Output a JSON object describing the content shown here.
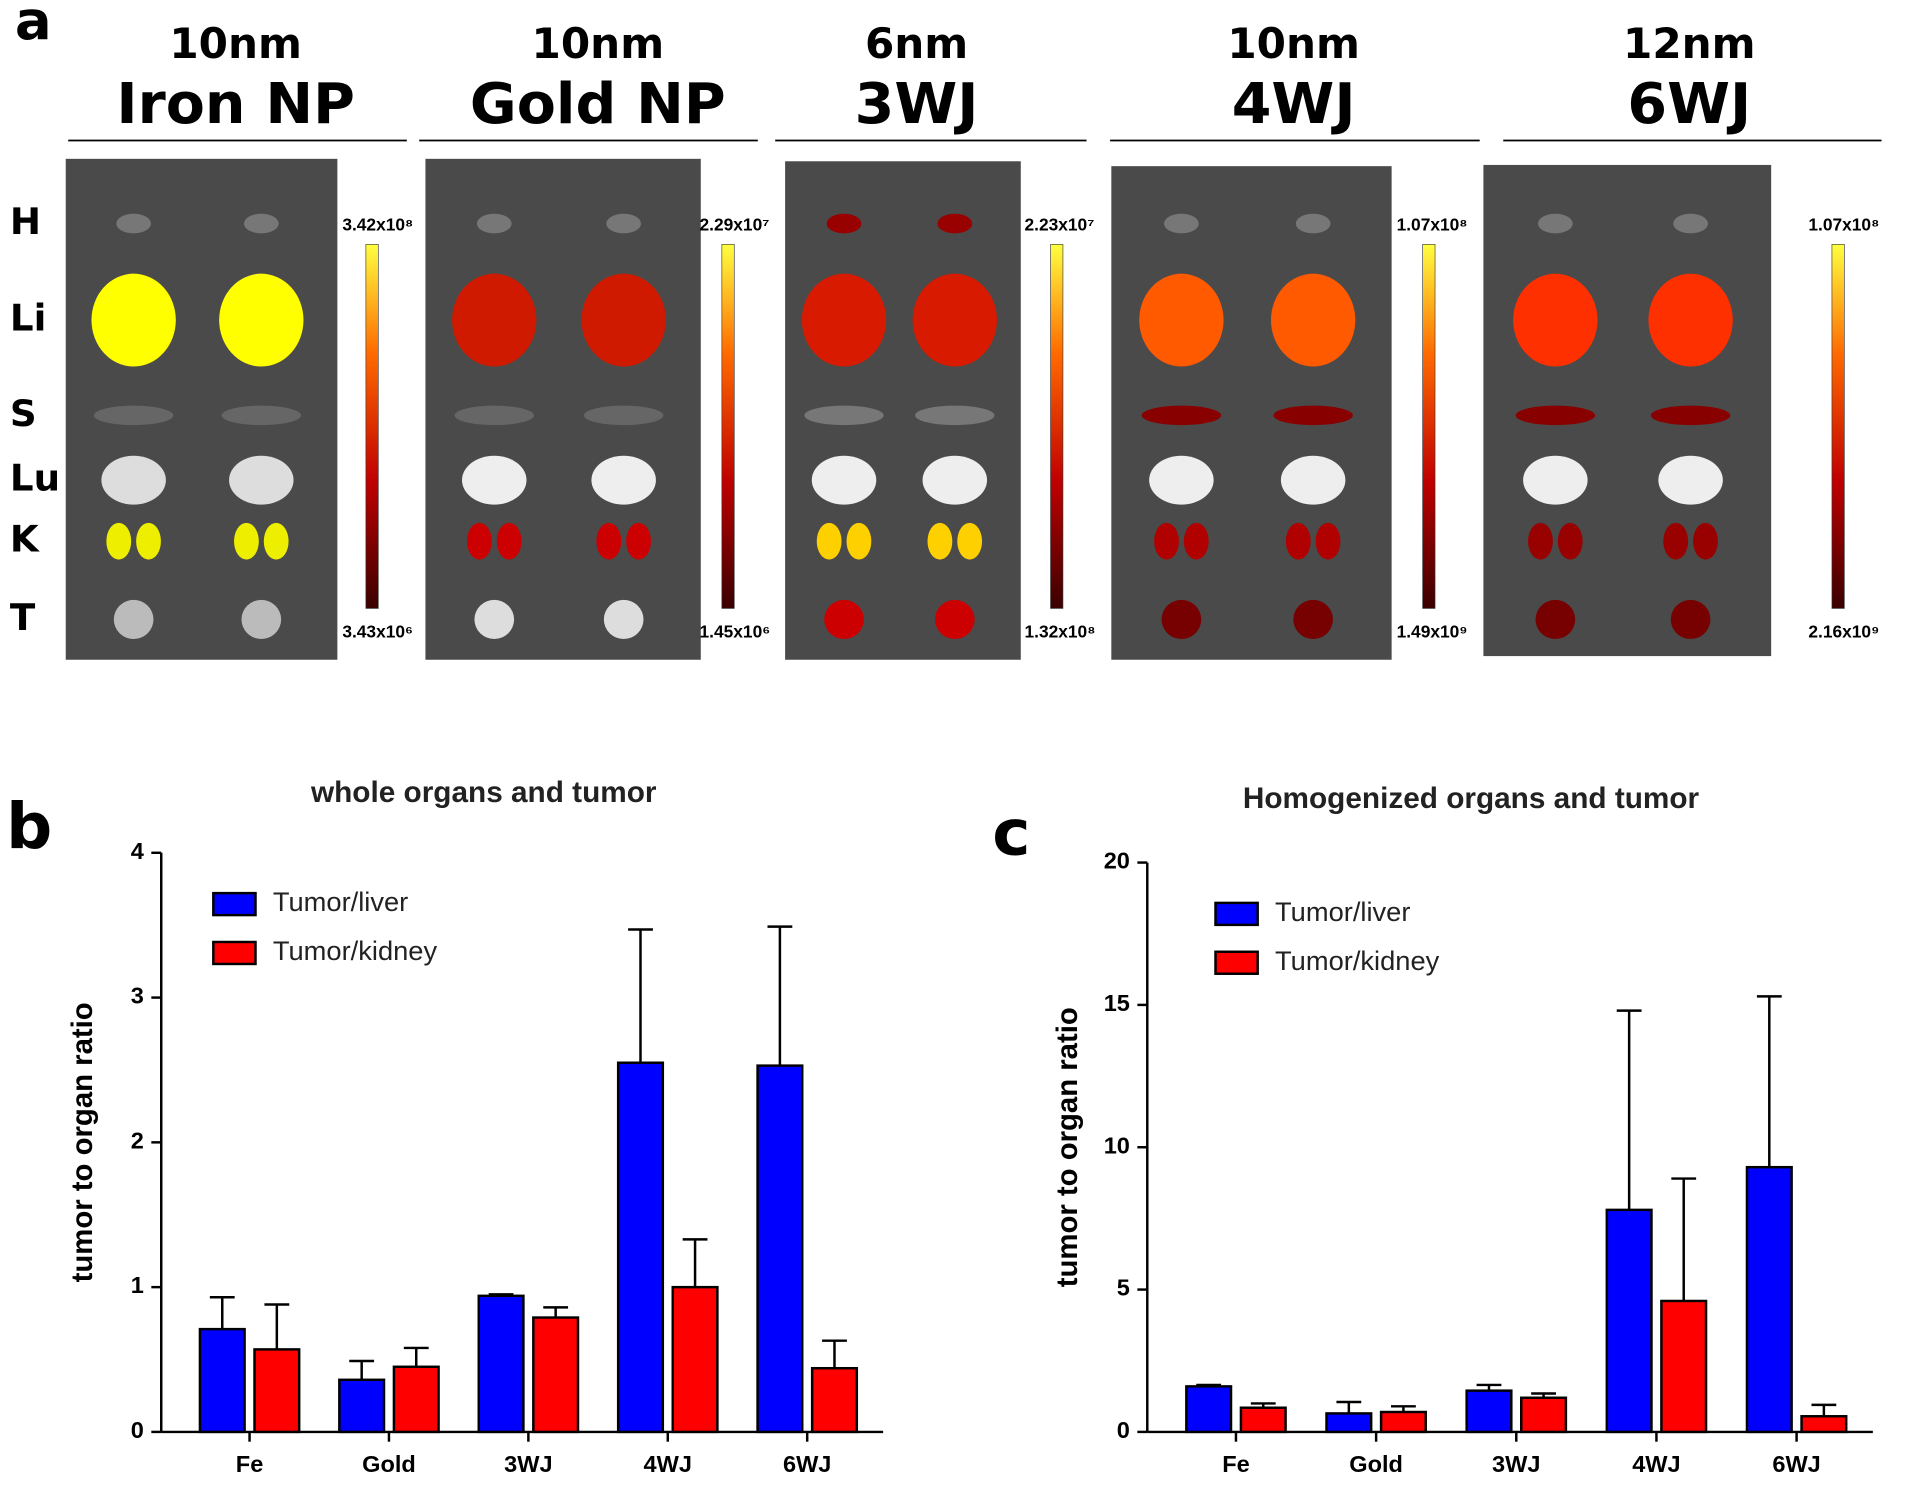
{
  "panel_a": {
    "label": "a",
    "organs": [
      "H",
      "Li",
      "S",
      "Lu",
      "K",
      "T"
    ],
    "columns": [
      {
        "size": "10nm",
        "name": "Iron NP",
        "scale_max": "3.42x10⁸",
        "scale_min": "3.43x10⁶"
      },
      {
        "size": "10nm",
        "name": "Gold NP",
        "scale_max": "2.29x10⁷",
        "scale_min": "1.45x10⁶"
      },
      {
        "size": "6nm",
        "name": "3WJ",
        "scale_max": "2.23x10⁷",
        "scale_min": "1.32x10⁸"
      },
      {
        "size": "10nm",
        "name": "4WJ",
        "scale_max": "1.07x10⁸",
        "scale_min": "1.49x10⁹"
      },
      {
        "size": "12nm",
        "name": "6WJ",
        "scale_max": "1.07x10⁸",
        "scale_min": "2.16x10⁹"
      }
    ]
  },
  "chart_data": [
    {
      "type": "bar",
      "panel_label": "b",
      "title": "whole organs and tumor",
      "y_label": "tumor to organ ratio",
      "categories": [
        "Fe",
        "Gold",
        "3WJ",
        "4WJ",
        "6WJ"
      ],
      "series": [
        {
          "name": "Tumor/liver",
          "color": "#0000ff",
          "values": [
            0.71,
            0.36,
            0.94,
            2.55,
            2.53
          ],
          "errors": [
            0.22,
            0.13,
            0.01,
            0.92,
            0.96
          ]
        },
        {
          "name": "Tumor/kidney",
          "color": "#ff0000",
          "values": [
            0.57,
            0.45,
            0.79,
            1.0,
            0.44
          ],
          "errors": [
            0.31,
            0.13,
            0.07,
            0.33,
            0.19
          ]
        }
      ],
      "ylim": [
        0,
        4
      ],
      "yticks": [
        0,
        1,
        2,
        3,
        4
      ],
      "legend": "upper left"
    },
    {
      "type": "bar",
      "panel_label": "c",
      "title": "Homogenized organs and tumor",
      "y_label": "tumor to organ ratio",
      "categories": [
        "Fe",
        "Gold",
        "3WJ",
        "4WJ",
        "6WJ"
      ],
      "series": [
        {
          "name": "Tumor/liver",
          "color": "#0000ff",
          "values": [
            1.6,
            0.65,
            1.45,
            7.8,
            9.3
          ],
          "errors": [
            0.05,
            0.4,
            0.2,
            7.0,
            6.0
          ]
        },
        {
          "name": "Tumor/kidney",
          "color": "#ff0000",
          "values": [
            0.85,
            0.7,
            1.2,
            4.6,
            0.55
          ],
          "errors": [
            0.15,
            0.2,
            0.15,
            4.3,
            0.4
          ]
        }
      ],
      "ylim": [
        0,
        20
      ],
      "yticks": [
        0,
        5,
        10,
        15,
        20
      ],
      "legend": "upper left"
    }
  ]
}
